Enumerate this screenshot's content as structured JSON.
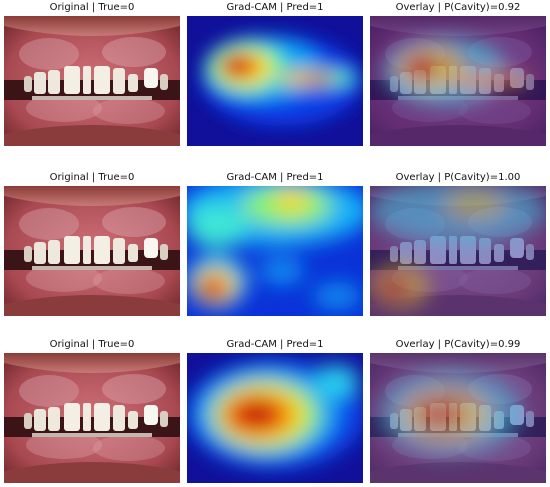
{
  "rows": [
    {
      "original_title": "Original | True=0",
      "gradcam_title": "Grad-CAM | Pred=1",
      "overlay_title": "Overlay | P(Cavity)=0.92"
    },
    {
      "original_title": "Original | True=0",
      "gradcam_title": "Grad-CAM | Pred=1",
      "overlay_title": "Overlay | P(Cavity)=1.00"
    },
    {
      "original_title": "Original | True=0",
      "gradcam_title": "Grad-CAM | Pred=1",
      "overlay_title": "Overlay | P(Cavity)=0.99"
    }
  ],
  "colors": {
    "jet_low": "#1010c0",
    "jet_high": "#c00000",
    "gum": "#c06068",
    "tooth": "#f2efe6"
  }
}
